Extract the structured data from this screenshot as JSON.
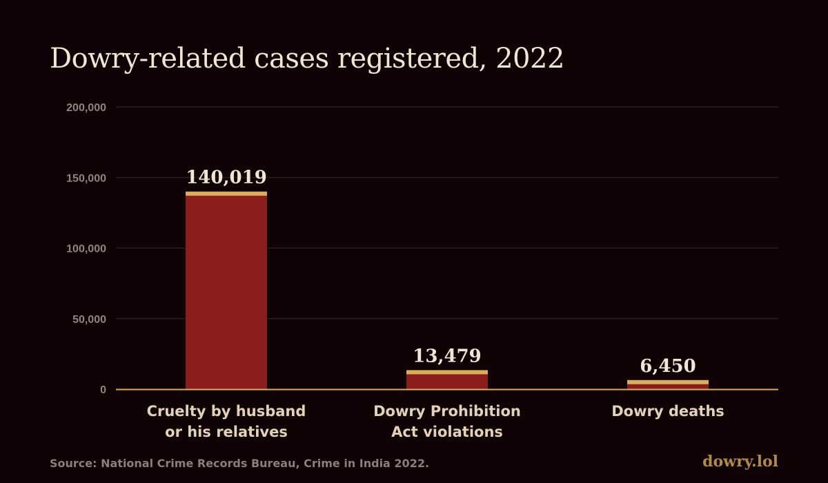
{
  "colors": {
    "background": "#0f0306",
    "bar": "#8b1e1a",
    "bar_cap": "#d8ae60",
    "grid": "#3a2428",
    "axis": "#d8ae60",
    "title": "#f1e6d3",
    "value_label": "#f1e6d3",
    "category_label": "#e2d2b6",
    "tick_label": "#8f8480",
    "source": "#8a7f7a",
    "brand": "#b08a4c"
  },
  "chart_data": {
    "type": "bar",
    "title": "Dowry-related cases registered, 2022",
    "categories": [
      [
        "Cruelty by husband",
        "or his relatives"
      ],
      [
        "Dowry Prohibition",
        "Act violations"
      ],
      [
        "Dowry deaths"
      ]
    ],
    "values": [
      140019,
      13479,
      6450
    ],
    "value_labels": [
      "140,019",
      "13,479",
      "6,450"
    ],
    "ylim": [
      0,
      200000
    ],
    "yticks": [
      0,
      50000,
      100000,
      150000,
      200000
    ],
    "ytick_labels": [
      "0",
      "50,000",
      "100,000",
      "150,000",
      "200,000"
    ],
    "xlabel": "",
    "ylabel": "",
    "grid": true,
    "legend": "none"
  },
  "footer": {
    "source": "Source: National Crime Records Bureau, Crime in India 2022.",
    "brand": "dowry.lol"
  }
}
